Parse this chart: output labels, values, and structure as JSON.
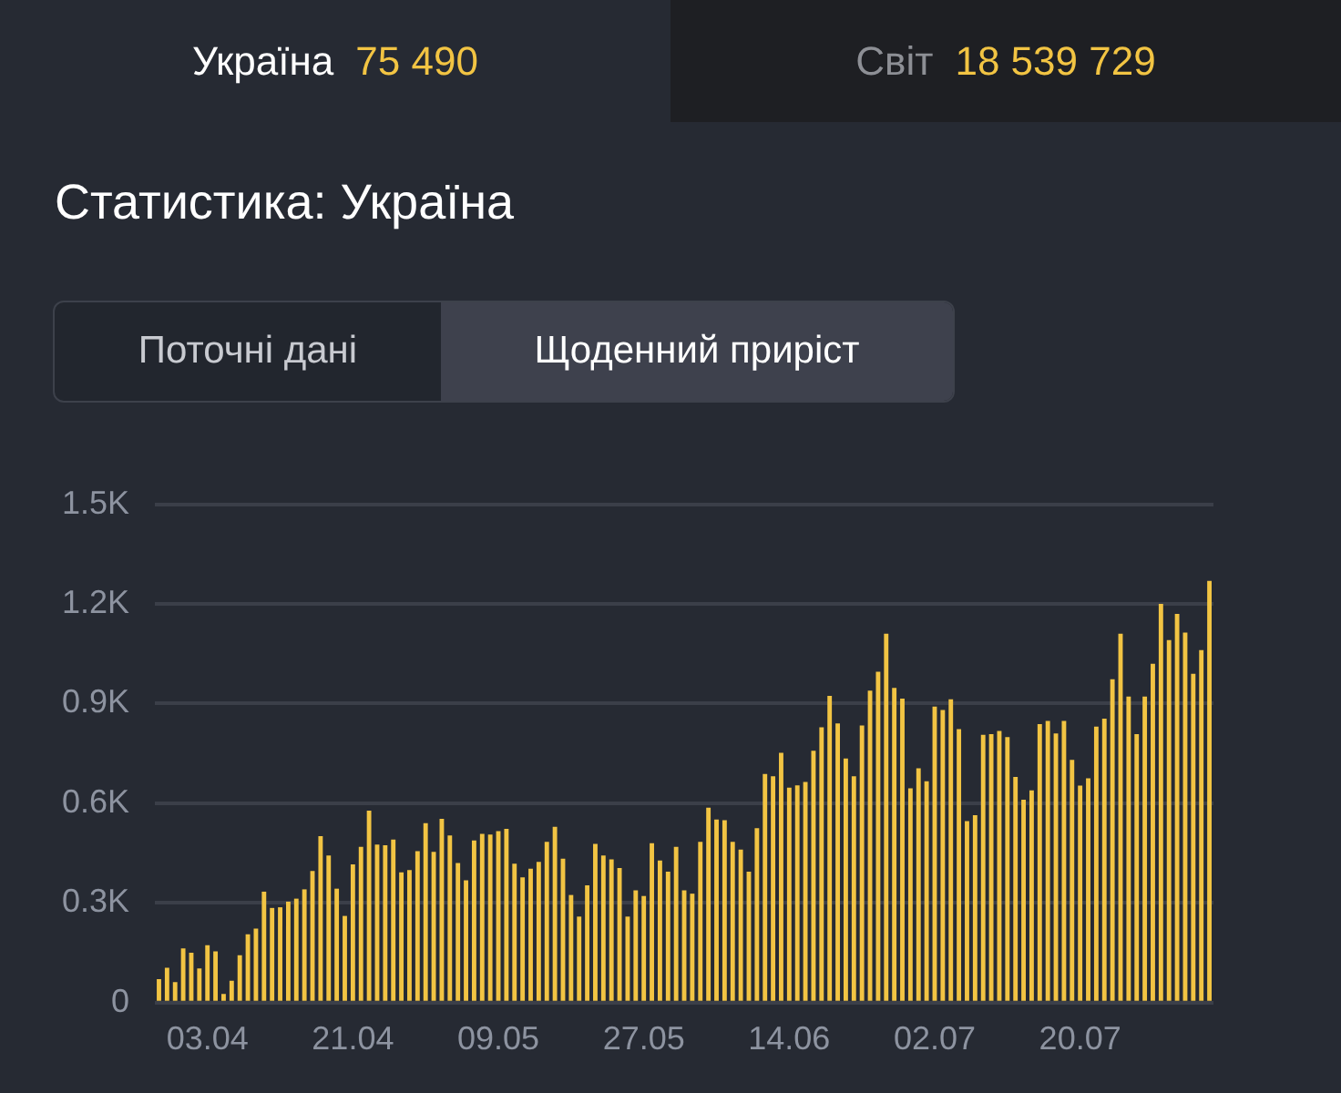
{
  "chart_data": {
    "type": "bar",
    "title": "Статистика: Україна",
    "annotations": [
      "Україна",
      "75 490",
      "Світ",
      "18 539 729",
      "Поточні дані",
      "Щоденний приріст"
    ],
    "categories": [
      null,
      null,
      null,
      null,
      null,
      null,
      "03.04",
      null,
      null,
      null,
      null,
      null,
      null,
      null,
      null,
      null,
      null,
      null,
      null,
      null,
      null,
      null,
      null,
      null,
      "21.04",
      null,
      null,
      null,
      null,
      null,
      null,
      null,
      null,
      null,
      null,
      null,
      null,
      null,
      null,
      null,
      null,
      null,
      "09.05",
      null,
      null,
      null,
      null,
      null,
      null,
      null,
      null,
      null,
      null,
      null,
      null,
      null,
      null,
      null,
      null,
      null,
      "27.05",
      null,
      null,
      null,
      null,
      null,
      null,
      null,
      null,
      null,
      null,
      null,
      null,
      null,
      null,
      null,
      null,
      null,
      "14.06",
      null,
      null,
      null,
      null,
      null,
      null,
      null,
      null,
      null,
      null,
      null,
      null,
      null,
      null,
      null,
      null,
      null,
      "02.07",
      null,
      null,
      null,
      null,
      null,
      null,
      null,
      null,
      null,
      null,
      null,
      null,
      null,
      null,
      null,
      null,
      null,
      "20.07",
      null,
      null,
      null,
      null,
      null,
      null,
      null,
      null,
      null,
      null,
      null,
      null,
      null,
      null,
      null,
      null
    ],
    "values": [
      71,
      105,
      62,
      163,
      150,
      103,
      173,
      154,
      26,
      66,
      143,
      206,
      223,
      334,
      285,
      287,
      304,
      313,
      341,
      396,
      501,
      443,
      343,
      261,
      416,
      469,
      578,
      476,
      474,
      491,
      392,
      399,
      456,
      540,
      454,
      553,
      503,
      420,
      368,
      488,
      508,
      506,
      516,
      523,
      418,
      377,
      403,
      424,
      484,
      529,
      433,
      324,
      259,
      353,
      478,
      443,
      431,
      405,
      259,
      338,
      321,
      480,
      428,
      394,
      469,
      338,
      328,
      484,
      587,
      551,
      549,
      484,
      461,
      394,
      525,
      688,
      681,
      752,
      647,
      654,
      664,
      758,
      829,
      923,
      840,
      735,
      681,
      834,
      939,
      996,
      1110,
      947,
      915,
      645,
      705,
      666,
      891,
      881,
      913,
      823,
      546,
      564,
      806,
      808,
      818,
      799,
      679,
      611,
      639,
      838,
      848,
      810,
      848,
      731,
      653,
      675,
      831,
      855,
      973,
      1110,
      921,
      808,
      921,
      1020,
      1200,
      1091,
      1170,
      1114,
      990,
      1061,
      1269
    ],
    "color": "#f2c443",
    "ylim": [
      0,
      1500
    ],
    "yticks": [
      0,
      {
        "value": 300,
        "label": "0.3K"
      },
      {
        "value": 600,
        "label": "0.6K"
      },
      {
        "value": 900,
        "label": "0.9K"
      },
      {
        "value": 1200,
        "label": "1.2K"
      },
      {
        "value": 1500,
        "label": "1.5K"
      }
    ],
    "grid": "y"
  }
}
